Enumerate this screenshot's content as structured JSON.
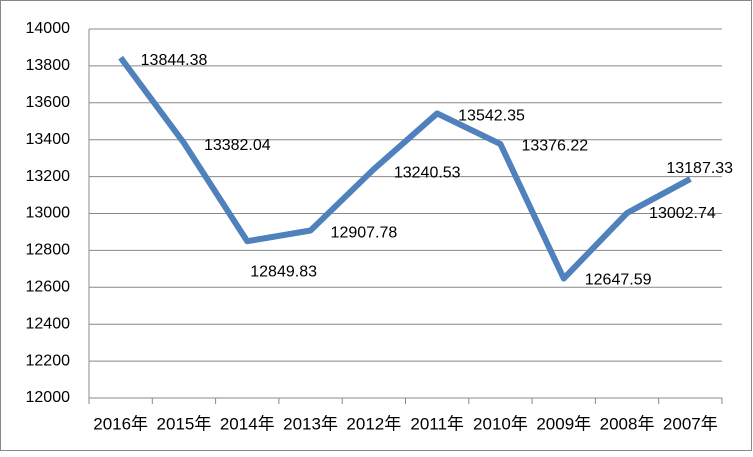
{
  "chart_data": {
    "type": "line",
    "categories": [
      "2016年",
      "2015年",
      "2014年",
      "2013年",
      "2012年",
      "2011年",
      "2010年",
      "2009年",
      "2008年",
      "2007年"
    ],
    "values": [
      13844.38,
      13382.04,
      12849.83,
      12907.78,
      13240.53,
      13542.35,
      13376.22,
      12647.59,
      13002.74,
      13187.33
    ],
    "color": "#4f81bd",
    "ylim": [
      12000,
      14000
    ],
    "yticks": [
      12000,
      12200,
      12400,
      12600,
      12800,
      13000,
      13200,
      13400,
      13600,
      13800,
      14000
    ],
    "grid": true
  }
}
